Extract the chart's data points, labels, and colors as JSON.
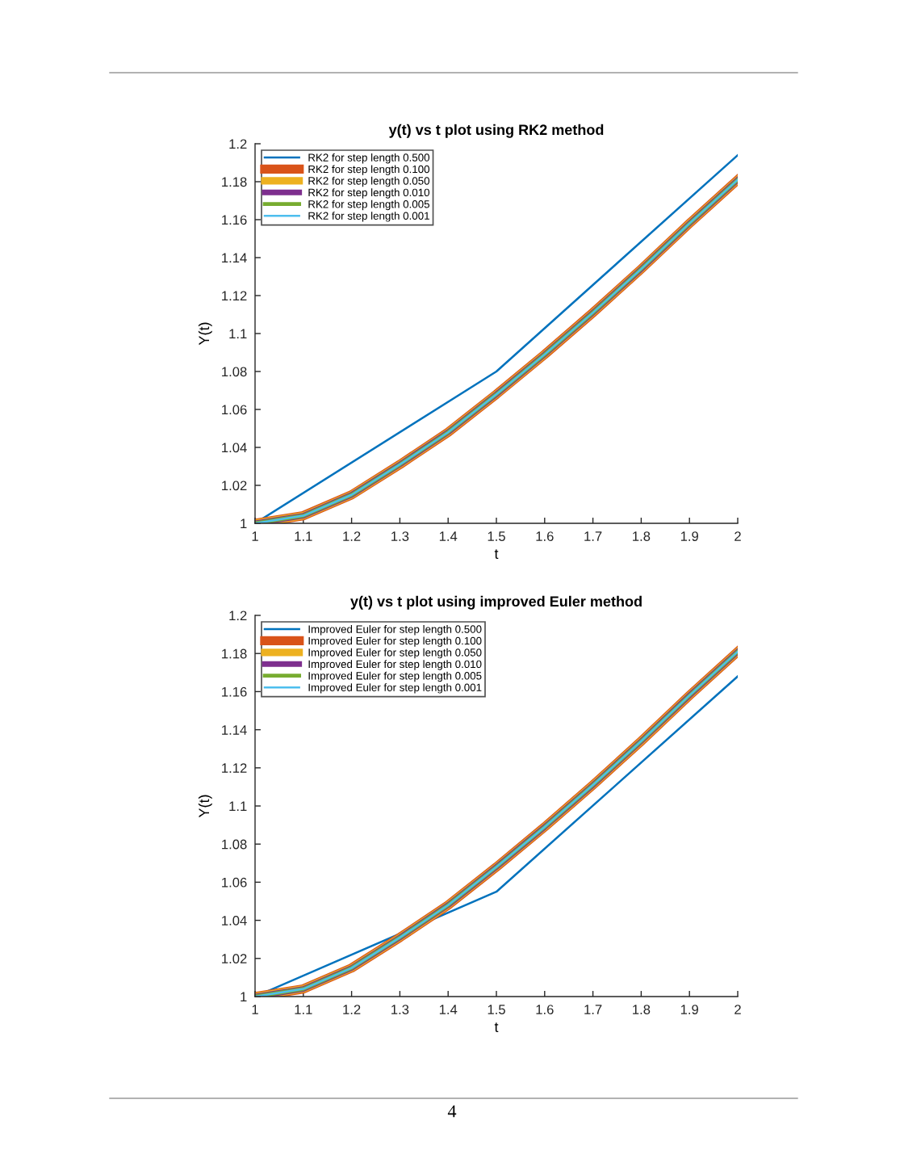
{
  "chart_data": [
    {
      "type": "line",
      "title": "y(t) vs t plot using RK2 method",
      "xlabel": "t",
      "ylabel": "Y(t)",
      "x": [
        1,
        1.1,
        1.2,
        1.3,
        1.4,
        1.5,
        1.6,
        1.7,
        1.8,
        1.9,
        2
      ],
      "series": [
        {
          "name": "RK2 for step length 0.500",
          "color": "#0072bd",
          "x": [
            1,
            1.5,
            2
          ],
          "values": [
            1,
            1.08,
            1.194
          ]
        },
        {
          "name": "RK2 for step length 0.100",
          "color": "#d95319",
          "values": [
            1,
            1.004,
            1.015,
            1.031,
            1.048,
            1.068,
            1.089,
            1.111,
            1.134,
            1.158,
            1.181
          ]
        },
        {
          "name": "RK2 for step length 0.050",
          "color": "#edb120",
          "values": [
            1,
            1.004,
            1.015,
            1.031,
            1.048,
            1.068,
            1.089,
            1.111,
            1.134,
            1.158,
            1.181
          ]
        },
        {
          "name": "RK2 for step length 0.010",
          "color": "#7e2f8e",
          "values": [
            1,
            1.004,
            1.015,
            1.031,
            1.048,
            1.068,
            1.089,
            1.111,
            1.134,
            1.158,
            1.181
          ]
        },
        {
          "name": "RK2 for step length 0.005",
          "color": "#77ac30",
          "values": [
            1,
            1.004,
            1.015,
            1.031,
            1.048,
            1.068,
            1.089,
            1.111,
            1.134,
            1.158,
            1.181
          ]
        },
        {
          "name": "RK2 for step length 0.001",
          "color": "#4dbeee",
          "values": [
            1,
            1.004,
            1.015,
            1.031,
            1.048,
            1.068,
            1.089,
            1.111,
            1.134,
            1.158,
            1.181
          ]
        }
      ],
      "xlim": [
        1,
        2
      ],
      "xticks": [
        1,
        1.1,
        1.2,
        1.3,
        1.4,
        1.5,
        1.6,
        1.7,
        1.8,
        1.9,
        2
      ],
      "ylim": [
        1,
        1.2
      ],
      "yticks": [
        1,
        1.02,
        1.04,
        1.06,
        1.08,
        1.1,
        1.12,
        1.14,
        1.16,
        1.18,
        1.2
      ],
      "legend": "top left",
      "grid": false,
      "marker": "none",
      "line_style": "solid"
    },
    {
      "type": "line",
      "title": "y(t) vs t plot using improved Euler method",
      "xlabel": "t",
      "ylabel": "Y(t)",
      "x": [
        1,
        1.1,
        1.2,
        1.3,
        1.4,
        1.5,
        1.6,
        1.7,
        1.8,
        1.9,
        2
      ],
      "series": [
        {
          "name": "Improved Euler for step length 0.500",
          "color": "#0072bd",
          "x": [
            1,
            1.5,
            2
          ],
          "values": [
            1,
            1.055,
            1.168
          ]
        },
        {
          "name": "Improved Euler for step length 0.100",
          "color": "#d95319",
          "values": [
            1,
            1.004,
            1.015,
            1.031,
            1.048,
            1.068,
            1.089,
            1.111,
            1.134,
            1.158,
            1.181
          ]
        },
        {
          "name": "Improved Euler for step length 0.050",
          "color": "#edb120",
          "values": [
            1,
            1.004,
            1.015,
            1.031,
            1.048,
            1.068,
            1.089,
            1.111,
            1.134,
            1.158,
            1.181
          ]
        },
        {
          "name": "Improved Euler for step length 0.010",
          "color": "#7e2f8e",
          "values": [
            1,
            1.004,
            1.015,
            1.031,
            1.048,
            1.068,
            1.089,
            1.111,
            1.134,
            1.158,
            1.181
          ]
        },
        {
          "name": "Improved Euler for step length 0.005",
          "color": "#77ac30",
          "values": [
            1,
            1.004,
            1.015,
            1.031,
            1.048,
            1.068,
            1.089,
            1.111,
            1.134,
            1.158,
            1.181
          ]
        },
        {
          "name": "Improved Euler for step length 0.001",
          "color": "#4dbeee",
          "values": [
            1,
            1.004,
            1.015,
            1.031,
            1.048,
            1.068,
            1.089,
            1.111,
            1.134,
            1.158,
            1.181
          ]
        }
      ],
      "xlim": [
        1,
        2
      ],
      "xticks": [
        1,
        1.1,
        1.2,
        1.3,
        1.4,
        1.5,
        1.6,
        1.7,
        1.8,
        1.9,
        2
      ],
      "ylim": [
        1,
        1.2
      ],
      "yticks": [
        1,
        1.02,
        1.04,
        1.06,
        1.08,
        1.1,
        1.12,
        1.14,
        1.16,
        1.18,
        1.2
      ],
      "legend": "top left",
      "grid": false,
      "marker": "none",
      "line_style": "solid",
      "annotations": [
        "4"
      ]
    }
  ]
}
